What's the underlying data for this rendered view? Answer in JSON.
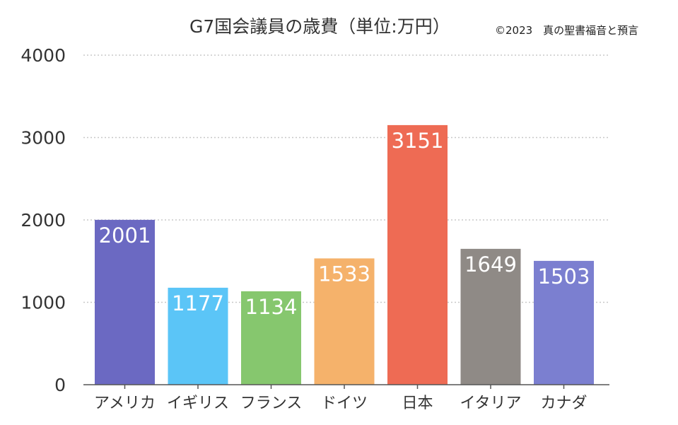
{
  "chart_data": {
    "type": "bar",
    "title": "G7国会議員の歳費（単位:万円）",
    "credit": "©2023　真の聖書福音と預言",
    "categories": [
      "アメリカ",
      "イギリス",
      "フランス",
      "ドイツ",
      "日本",
      "イタリア",
      "カナダ"
    ],
    "values": [
      2001,
      1177,
      1134,
      1533,
      3151,
      1649,
      1503
    ],
    "data_labels": [
      "2001",
      "1177",
      "1134",
      "1533",
      "3151",
      "1649",
      "1503"
    ],
    "colors": [
      "#6b69c2",
      "#5bc5f7",
      "#86c76e",
      "#f5b26b",
      "#ee6b54",
      "#8f8a86",
      "#7b7fd0"
    ],
    "yticks": [
      "0",
      "1000",
      "2000",
      "3000",
      "4000"
    ],
    "ytick_values": [
      0,
      1000,
      2000,
      3000,
      4000
    ],
    "ylim": [
      0,
      4000
    ],
    "xlabel": "",
    "ylabel": "",
    "grid": true,
    "legend": "none"
  }
}
